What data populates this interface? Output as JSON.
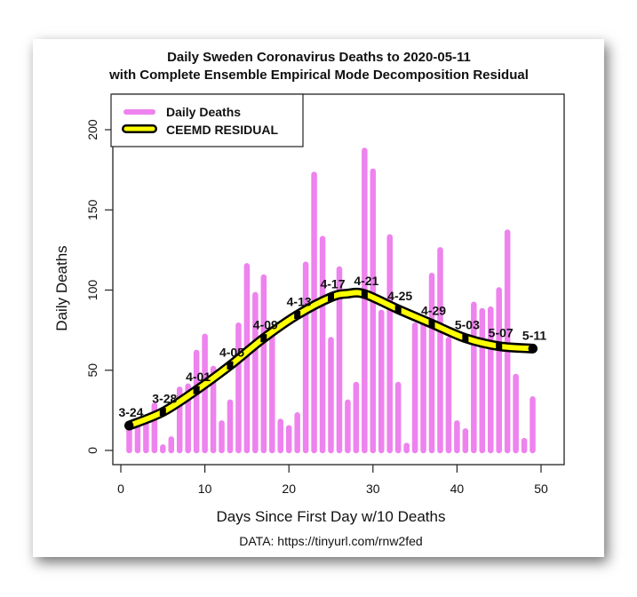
{
  "chart_data": {
    "type": "bar",
    "title": "Daily Sweden Coronavirus Deaths to 2020-05-11",
    "subtitle": "with Complete Ensemble Empirical Mode Decomposition Residual",
    "xlabel": "Days Since First Day w/10 Deaths",
    "ylabel": "Daily Deaths",
    "caption": "DATA: https://tinyurl.com/rnw2fed",
    "xlim": [
      0,
      50
    ],
    "ylim": [
      0,
      200
    ],
    "x_ticks": [
      0,
      10,
      20,
      30,
      40,
      50
    ],
    "y_ticks": [
      0,
      50,
      100,
      150,
      200
    ],
    "grid": false,
    "legend": {
      "placement": "top-left",
      "entries": [
        {
          "label": "Daily Deaths",
          "color": "#ee82ee",
          "style": "bar"
        },
        {
          "label": "CEEMD RESIDUAL",
          "color": "#ffff00",
          "outline": "#000000",
          "style": "line"
        }
      ]
    },
    "series": [
      {
        "name": "Daily Deaths",
        "kind": "bar",
        "color": "#ee82ee",
        "x": [
          1,
          2,
          3,
          4,
          5,
          6,
          7,
          8,
          9,
          10,
          11,
          12,
          13,
          14,
          15,
          16,
          17,
          18,
          19,
          20,
          21,
          22,
          23,
          24,
          25,
          26,
          27,
          28,
          29,
          30,
          31,
          32,
          33,
          34,
          35,
          36,
          37,
          38,
          39,
          40,
          41,
          42,
          43,
          44,
          45,
          46,
          47,
          48,
          49
        ],
        "values": [
          15,
          16,
          18,
          28,
          2,
          7,
          38,
          40,
          61,
          71,
          51,
          17,
          30,
          78,
          115,
          97,
          108,
          75,
          18,
          14,
          22,
          116,
          172,
          132,
          69,
          113,
          30,
          41,
          187,
          174,
          86,
          133,
          41,
          3,
          78,
          82,
          109,
          125,
          69,
          17,
          12,
          91,
          87,
          88,
          100,
          136,
          46,
          6,
          32
        ]
      },
      {
        "name": "CEEMD RESIDUAL",
        "kind": "line",
        "color": "#ffff00",
        "outline": "#000000",
        "x": [
          1,
          5,
          9,
          13,
          17,
          21,
          25,
          27,
          29,
          33,
          37,
          41,
          45,
          49
        ],
        "values": [
          15.5,
          24,
          37.6,
          53,
          70,
          84.5,
          95.5,
          97.8,
          97.5,
          88,
          79,
          70,
          65,
          63.5
        ]
      }
    ],
    "point_labels": [
      {
        "x": 1,
        "y": 15.5,
        "text": "3-24"
      },
      {
        "x": 5,
        "y": 24,
        "text": "3-28"
      },
      {
        "x": 9,
        "y": 37.6,
        "text": "4-01"
      },
      {
        "x": 13,
        "y": 53,
        "text": "4-05"
      },
      {
        "x": 17,
        "y": 70,
        "text": "4-09"
      },
      {
        "x": 21,
        "y": 84.5,
        "text": "4-13"
      },
      {
        "x": 25,
        "y": 95.5,
        "text": "4-17"
      },
      {
        "x": 29,
        "y": 97.5,
        "text": "4-21"
      },
      {
        "x": 33,
        "y": 88,
        "text": "4-25"
      },
      {
        "x": 37,
        "y": 79,
        "text": "4-29"
      },
      {
        "x": 41,
        "y": 70,
        "text": "5-03"
      },
      {
        "x": 45,
        "y": 65,
        "text": "5-07"
      },
      {
        "x": 49,
        "y": 63.5,
        "text": "5-11"
      }
    ]
  }
}
